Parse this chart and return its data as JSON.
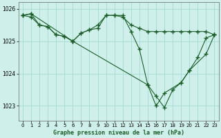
{
  "title": "Graphe pression niveau de la mer (hPa)",
  "bg_color": "#cff0ea",
  "grid_color": "#aaddd5",
  "line_color": "#1a5c28",
  "ylim": [
    1022.55,
    1026.2
  ],
  "yticks": [
    1023,
    1024,
    1025,
    1026
  ],
  "xlim": [
    -0.5,
    23.5
  ],
  "xticks": [
    0,
    1,
    2,
    3,
    4,
    5,
    6,
    7,
    8,
    9,
    10,
    11,
    12,
    13,
    14,
    15,
    16,
    17,
    18,
    19,
    20,
    21,
    22,
    23
  ],
  "series1": [
    1025.8,
    1025.9,
    null,
    null,
    null,
    null,
    null,
    null,
    null,
    null,
    1025.8,
    1025.8,
    1025.8,
    null,
    null,
    null,
    null,
    null,
    null,
    null,
    null,
    null,
    null,
    1025.2
  ],
  "series2": [
    1025.8,
    1025.75,
    1025.5,
    1025.45,
    1025.2,
    1025.15,
    1025.0,
    1025.25,
    1025.35,
    1025.4,
    1025.8,
    1025.8,
    1025.75,
    1025.5,
    1025.4,
    1025.3,
    1025.3,
    1025.3,
    1025.3,
    1025.3,
    1025.3,
    1025.3,
    1025.3,
    1025.2
  ],
  "series3": [
    1025.8,
    1025.85,
    1025.5,
    1025.45,
    1025.2,
    1025.15,
    1025.0,
    1025.25,
    1025.35,
    1025.5,
    1025.8,
    1025.8,
    1025.8,
    1025.3,
    1024.75,
    1023.65,
    1023.3,
    1022.95,
    1023.5,
    1023.72,
    1024.1,
    1024.5,
    1025.1,
    1025.2
  ],
  "series4_x": [
    0,
    1,
    6,
    15,
    16,
    17,
    19,
    20,
    22,
    23
  ],
  "series4_y": [
    1025.8,
    1025.85,
    1025.0,
    1023.65,
    1023.0,
    1023.4,
    1023.72,
    1024.1,
    1024.6,
    1025.2
  ]
}
